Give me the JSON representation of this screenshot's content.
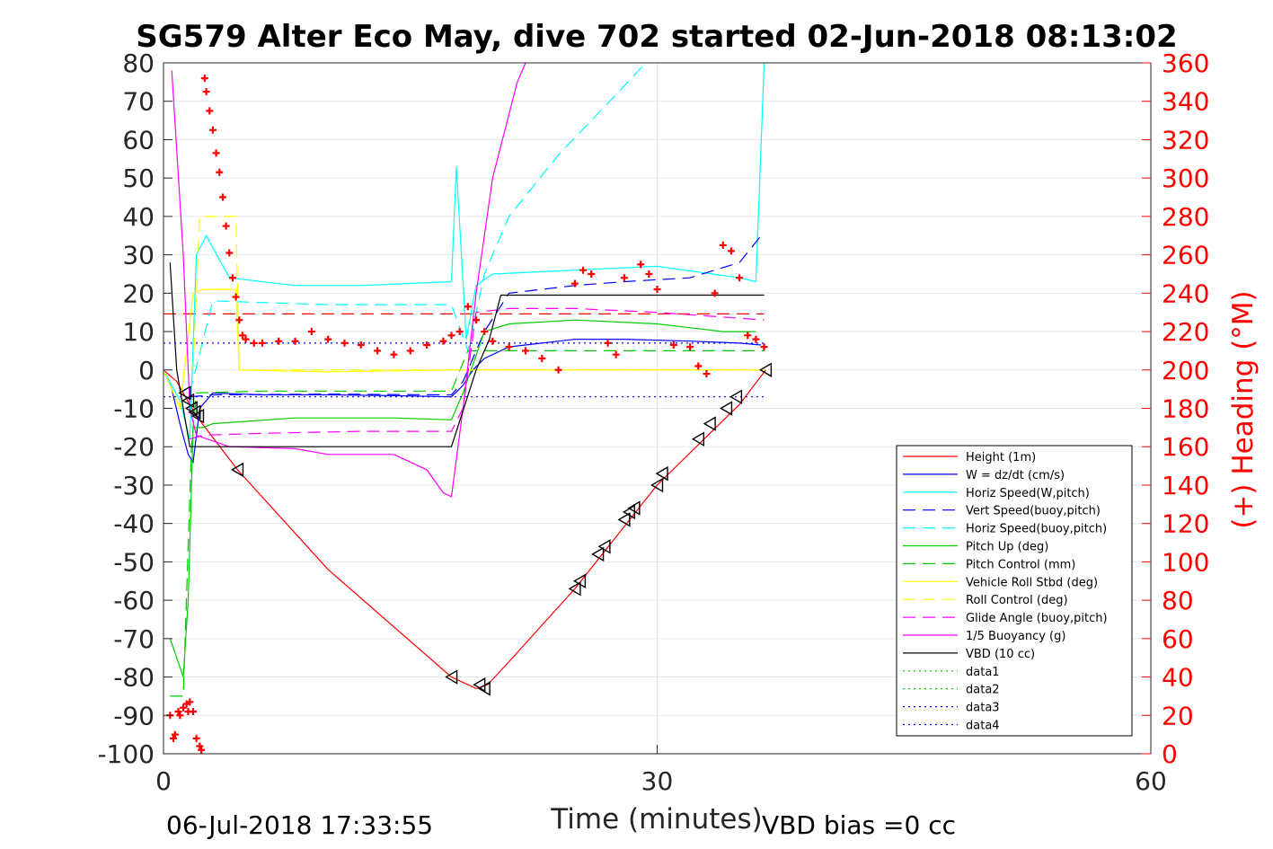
{
  "chart_data": {
    "type": "line",
    "title": "SG579 Alter Eco May, dive 702 started 02-Jun-2018 08:13:02",
    "xlabel": "Time (minutes)",
    "ylabel": "",
    "y2label": "(+) Heading (°M)",
    "xlim": [
      0,
      60
    ],
    "ylim": [
      -100,
      80
    ],
    "y2lim": [
      0,
      360
    ],
    "xticks": [
      "0",
      "30",
      "60"
    ],
    "yticks": [
      "80",
      "70",
      "60",
      "50",
      "40",
      "30",
      "20",
      "10",
      "0",
      "-10",
      "-20",
      "-30",
      "-40",
      "-50",
      "-60",
      "-70",
      "-80",
      "-90",
      "-100"
    ],
    "y2ticks": [
      "360",
      "340",
      "320",
      "300",
      "280",
      "260",
      "240",
      "220",
      "200",
      "180",
      "160",
      "140",
      "120",
      "100",
      "80",
      "60",
      "40",
      "20",
      "0"
    ],
    "grid": true,
    "legend_position": "lower-right",
    "footer_left": "06-Jul-2018 17:33:55",
    "footer_right": "VBD bias =0 cc",
    "series": [
      {
        "name": "Height (1m)",
        "color": "#ff0000",
        "style": "solid",
        "x": [
          0,
          0.8,
          1.2,
          1.6,
          2.0,
          4.5,
          10,
          17.5,
          19.0,
          19.7,
          21,
          25,
          30,
          35,
          36.6
        ],
        "y": [
          0,
          -3,
          -6,
          -9,
          -12,
          -26,
          -52,
          -80,
          -83,
          -82,
          -76,
          -57,
          -30,
          -9,
          0
        ]
      },
      {
        "name": "W = dz/dt (cm/s)",
        "color": "#0000ff",
        "style": "solid",
        "x": [
          0,
          0.5,
          1.0,
          1.5,
          1.8,
          2.2,
          3,
          6,
          10,
          14,
          17.5,
          18.2,
          18.8,
          19.5,
          21,
          25,
          28,
          32,
          35,
          36.3
        ],
        "y": [
          0,
          -5,
          -14,
          -22,
          -24,
          -10,
          -6,
          -6.5,
          -6.5,
          -6.7,
          -7,
          -4,
          0,
          3,
          6,
          8,
          8,
          7.5,
          7,
          6.5
        ]
      },
      {
        "name": "Horiz Speed(W,pitch)",
        "color": "#00ffff",
        "style": "solid",
        "x": [
          0,
          1,
          1.6,
          2.0,
          2.6,
          4,
          8,
          12,
          17.5,
          17.8,
          18.4,
          19,
          20,
          25,
          30,
          35,
          36.0,
          36.5
        ],
        "y": [
          0,
          -8,
          -18,
          30,
          35,
          24,
          22,
          22,
          23,
          53,
          8,
          22,
          25,
          26,
          27,
          24,
          23,
          80
        ]
      },
      {
        "name": "Vert Speed(buoy,pitch)",
        "color": "#0000ff",
        "style": "dashed",
        "x": [
          1.6,
          3,
          10,
          17.5,
          18.2,
          19.5,
          21,
          25,
          28,
          32,
          35,
          36.5
        ],
        "y": [
          -7,
          -6.5,
          -6.3,
          -6.5,
          -3,
          10,
          20,
          22,
          23,
          24,
          28,
          36
        ]
      },
      {
        "name": "Horiz Speed(buoy,pitch)",
        "color": "#00ffff",
        "style": "dashed",
        "x": [
          1.6,
          3,
          10,
          17.5,
          18.5,
          19.5,
          21,
          24,
          28,
          29.3
        ],
        "y": [
          -6,
          18,
          17,
          17,
          5,
          25,
          40,
          56,
          74,
          80
        ]
      },
      {
        "name": "Pitch Up (deg)",
        "color": "#00cc00",
        "style": "solid",
        "x": [
          0.4,
          0.8,
          1.2,
          1.5,
          1.8,
          2.4,
          3,
          8,
          14,
          17.5,
          18.2,
          19.5,
          21,
          25,
          30,
          34,
          36
        ],
        "y": [
          -70,
          -75,
          -80,
          -60,
          -15,
          -15,
          -14,
          -12.5,
          -12.5,
          -13,
          -6,
          10,
          12,
          13,
          12,
          10,
          10
        ]
      },
      {
        "name": "Pitch Control (mm)",
        "color": "#00cc00",
        "style": "dashed",
        "x": [
          0.4,
          1.2,
          1.7,
          2.0,
          6,
          12,
          17.5,
          18.5,
          19.5,
          21,
          24,
          30,
          36.5
        ],
        "y": [
          -85,
          -85,
          -20,
          -6,
          -5.5,
          -5.5,
          -5.5,
          5,
          5,
          5,
          5,
          5,
          5
        ]
      },
      {
        "name": "Vehicle Roll Stbd (deg)",
        "color": "#ffff00",
        "style": "solid",
        "x": [
          0,
          1,
          1.8,
          2.4,
          4.4,
          4.6,
          10,
          17.5,
          19,
          25,
          28,
          32,
          35,
          36.5
        ],
        "y": [
          0,
          -10,
          20,
          21,
          21,
          0,
          -0.5,
          0,
          0,
          0,
          0,
          0,
          0,
          0
        ]
      },
      {
        "name": "Roll Control (deg)",
        "color": "#ffff00",
        "style": "dashed",
        "x": [
          1.8,
          2.2,
          4.4,
          4.6,
          17.5,
          25,
          27,
          30,
          32,
          34,
          36.5
        ],
        "y": [
          0,
          40,
          40,
          0,
          0,
          0,
          0,
          0,
          0,
          0,
          0
        ]
      },
      {
        "name": "Glide Angle (buoy,pitch)",
        "color": "#ff00ff",
        "style": "dashed",
        "x": [
          1.6,
          2.4,
          6,
          12,
          17.5,
          18.2,
          19,
          21,
          25,
          30,
          36.5
        ],
        "y": [
          -18,
          -17,
          -16.5,
          -16,
          -16,
          -10,
          15,
          16,
          16,
          15,
          13
        ]
      },
      {
        "name": "1/5 Buoyancy (g)",
        "color": "#ff00ff",
        "style": "solid",
        "x": [
          0.5,
          1.2,
          1.6,
          2.0,
          4,
          8,
          10,
          14,
          16,
          17,
          17.5,
          18.2,
          19,
          20,
          21.5,
          22
        ],
        "y": [
          78,
          30,
          -10,
          -17,
          -20,
          -20.5,
          -22,
          -22,
          -26,
          -32,
          -33,
          -10,
          20,
          50,
          75,
          80
        ]
      },
      {
        "name": "VBD (10 cc)",
        "color": "#000000",
        "style": "solid",
        "x": [
          0.4,
          0.8,
          1.6,
          2.0,
          4,
          17.5,
          19.0,
          19.8,
          20.5,
          36.5
        ],
        "y": [
          28,
          0,
          -20,
          -20,
          -20,
          -20,
          0,
          8,
          19.5,
          19.5
        ]
      },
      {
        "name": "data1",
        "color": "#00cc00",
        "style": "dotted",
        "x": [],
        "y": []
      },
      {
        "name": "data2",
        "color": "#00cc00",
        "style": "dotted",
        "x": [],
        "y": []
      },
      {
        "name": "data3",
        "color": "#0000ff",
        "style": "dotted",
        "x": [
          0,
          36.5
        ],
        "y": [
          7,
          7
        ]
      },
      {
        "name": "data4",
        "color": "#0000ff",
        "style": "dotted",
        "x": [
          0,
          36.5
        ],
        "y": [
          -7,
          -7
        ]
      }
    ],
    "ref_lines": [
      {
        "color": "#ff0000",
        "style": "dashed",
        "x": [
          0,
          36.5
        ],
        "y": [
          14.6,
          14.6
        ]
      }
    ],
    "heading_points": {
      "color": "#ff0000",
      "x": [
        0.4,
        0.6,
        0.7,
        0.9,
        1.0,
        1.2,
        1.4,
        1.5,
        1.6,
        1.8,
        2.0,
        2.2,
        2.3,
        2.5,
        2.6,
        2.8,
        3.0,
        3.2,
        3.4,
        3.6,
        3.8,
        4.0,
        4.2,
        4.4,
        4.6,
        4.8,
        5.0,
        5.5,
        6,
        7,
        8,
        9,
        10,
        11,
        12,
        13,
        14,
        15,
        16,
        17,
        17.5,
        18,
        18.5,
        19,
        19.5,
        20,
        21,
        22,
        23,
        24,
        25,
        25.5,
        26,
        27,
        27.5,
        28,
        29,
        29.5,
        30,
        31,
        32,
        32.5,
        33,
        33.5,
        34,
        34.5,
        35,
        35.5,
        36,
        36.5
      ],
      "heading": [
        20,
        8,
        10,
        22,
        20,
        24,
        26,
        22,
        27,
        22,
        8,
        4,
        2,
        352,
        345,
        335,
        325,
        313,
        303,
        290,
        275,
        261,
        248,
        238,
        226,
        218,
        216,
        214,
        214,
        215,
        215,
        220,
        216,
        214,
        213,
        210,
        208,
        210,
        213,
        215,
        218,
        220,
        233,
        226,
        220,
        215,
        212,
        210,
        206,
        200,
        245,
        252,
        250,
        214,
        208,
        248,
        255,
        250,
        242,
        213,
        212,
        202,
        198,
        240,
        265,
        262,
        248,
        218,
        216,
        212
      ]
    },
    "depth_markers": {
      "x": [
        1.3,
        1.5,
        1.7,
        1.9,
        2.1,
        4.5,
        17.5,
        19.2,
        19.5,
        25,
        25.3,
        26.4,
        26.8,
        28,
        28.3,
        28.6,
        30,
        30.3,
        32.5,
        33.2,
        34.2,
        34.8,
        36.6
      ],
      "y": [
        -6,
        -8,
        -10,
        -11,
        -12,
        -26,
        -80,
        -82,
        -83,
        -57,
        -55,
        -48,
        -46,
        -39,
        -37,
        -36,
        -30,
        -27,
        -18,
        -14,
        -10,
        -7,
        0
      ]
    }
  }
}
